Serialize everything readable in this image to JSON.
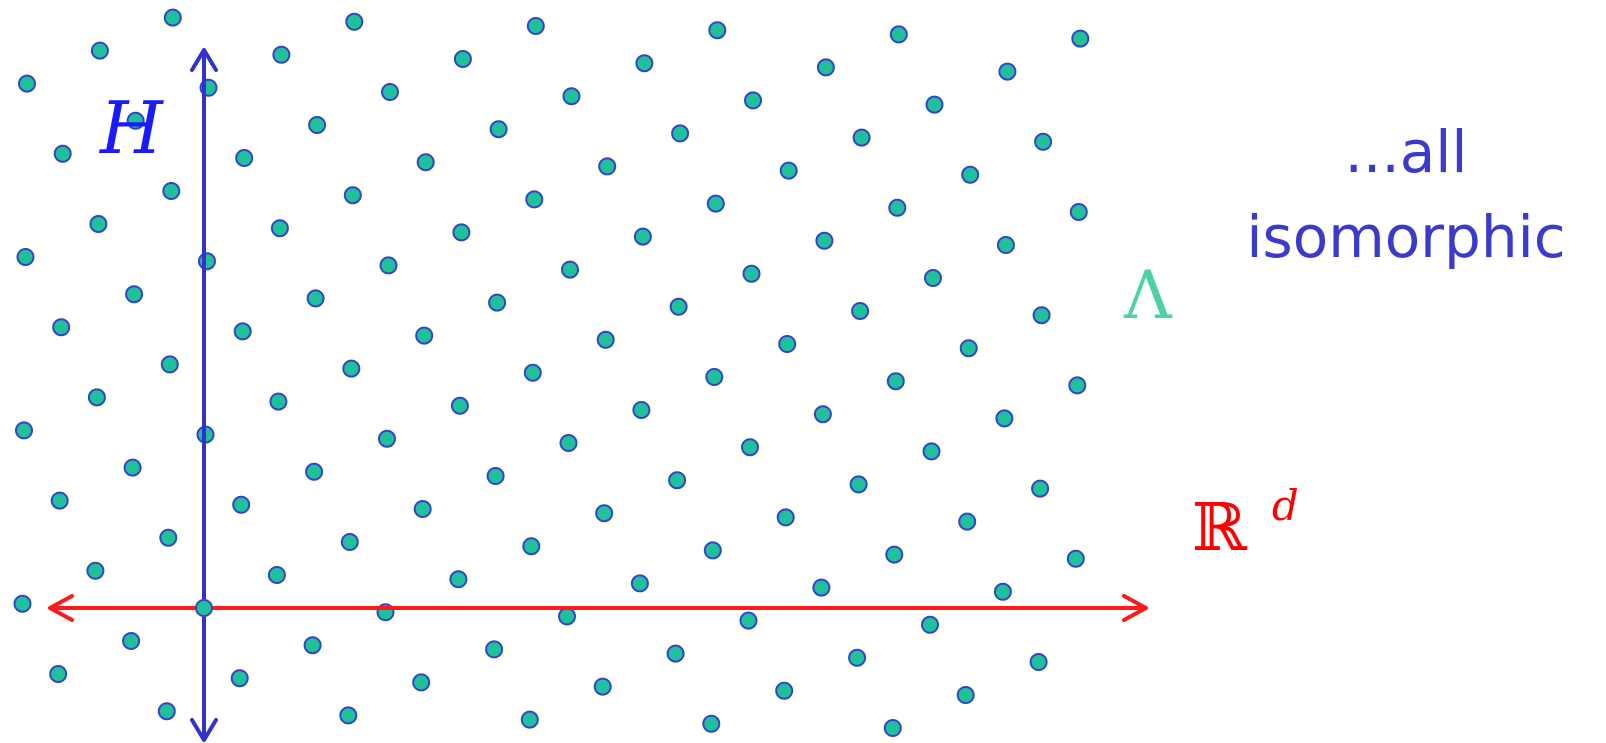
{
  "labels": {
    "h": "H",
    "lambda": "Λ",
    "r": "ℝ",
    "d": "d",
    "note_line1": "...all",
    "note_line2": "isomorphic"
  },
  "colors": {
    "background": "#ffffff",
    "h_axis": "#3333cc",
    "h_label": "#1a1aff",
    "r_axis": "#ff1a1a",
    "r_label": "#ff0000",
    "point_fill": "#20c19a",
    "point_stroke": "#3344cc",
    "lambda_label": "#4fd1a8",
    "note_text": "#3a3acc"
  },
  "lattice": {
    "a": [
      72.9,
      -33.0
    ],
    "b": [
      35.7,
      70.2
    ]
  }
}
